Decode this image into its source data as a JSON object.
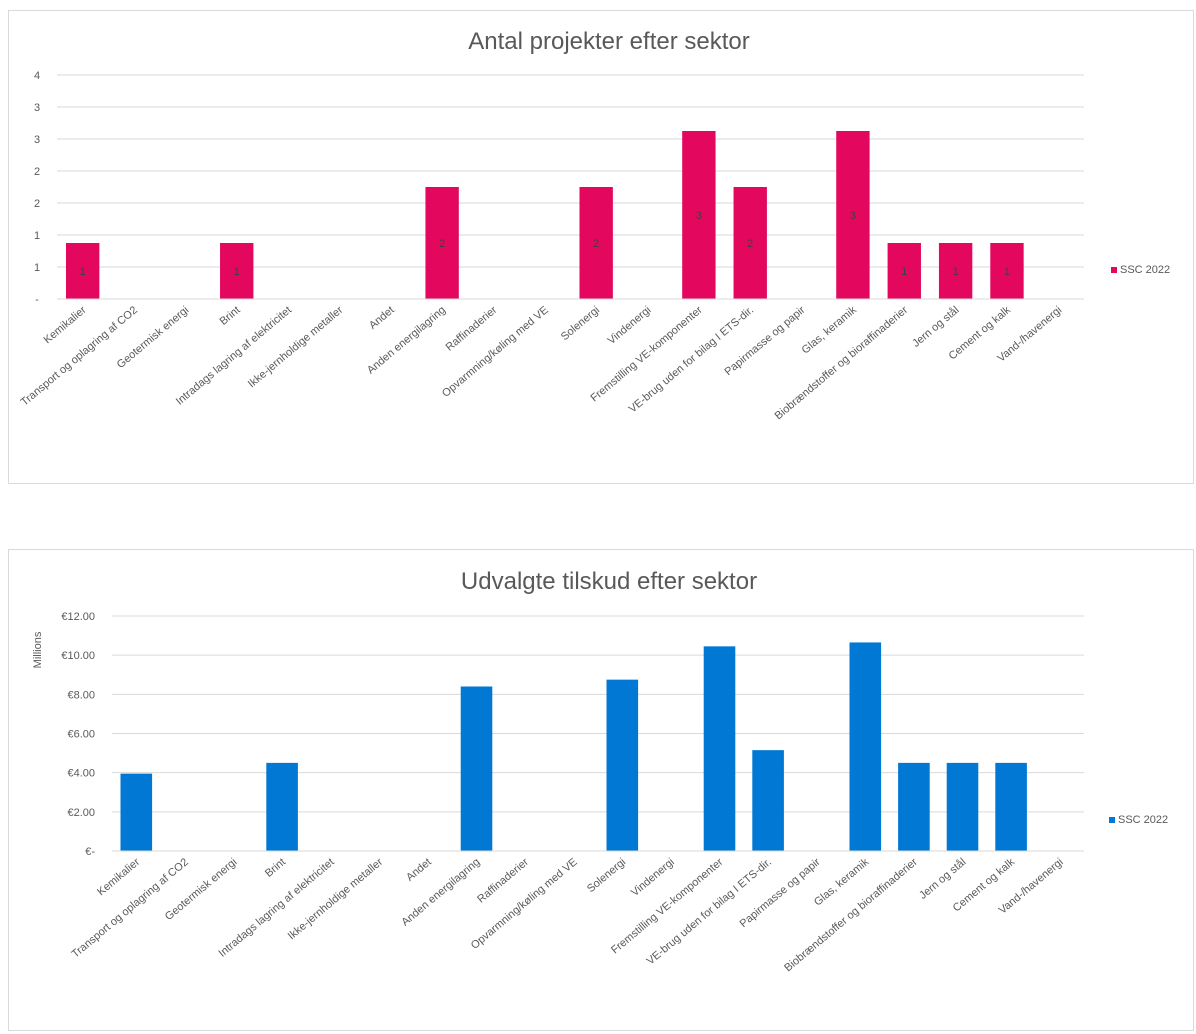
{
  "chart_data": [
    {
      "type": "bar",
      "title": "Antal projekter efter sektor",
      "xlabel": "",
      "ylabel": "",
      "ylim": [
        0,
        4
      ],
      "grid": true,
      "legend_position": "right",
      "y_tick_labels": [
        "-",
        "1",
        "1",
        "2",
        "2",
        "3",
        "3",
        "4"
      ],
      "categories": [
        "Kemikalier",
        "Transport og oplagring af CO2",
        "Geotermisk energi",
        "Brint",
        "Intradags lagring af elektricitet",
        "Ikke-jernholdige metaller",
        "Andet",
        "Anden energilagring",
        "Raffinaderier",
        "Opvarmning/køling med VE",
        "Solenergi",
        "Vindenergi",
        "Fremstilling VE-komponenter",
        "VE-brug uden for bilag I ETS-dir.",
        "Papirmasse og papir",
        "Glas, keramik",
        "Biobrændstoffer og bioraffinaderier",
        "Jern og stål",
        "Cement og kalk",
        "Vand-/havenergi"
      ],
      "series": [
        {
          "name": "SSC 2022",
          "color": "#e3085d",
          "values": [
            1,
            0,
            0,
            1,
            0,
            0,
            0,
            2,
            0,
            0,
            2,
            0,
            3,
            2,
            0,
            3,
            1,
            1,
            1,
            0
          ]
        }
      ],
      "data_labels": [
        "1",
        "",
        "",
        "1",
        "",
        "",
        "",
        "2",
        "",
        "",
        "2",
        "",
        "3",
        "2",
        "",
        "3",
        "1",
        "1",
        "1",
        ""
      ]
    },
    {
      "type": "bar",
      "title": "Udvalgte tilskud efter sektor",
      "xlabel": "",
      "ylabel": "Millions",
      "ylim": [
        0,
        12
      ],
      "grid": true,
      "legend_position": "right",
      "y_tick_labels": [
        "€-",
        "€2.00",
        "€4.00",
        "€6.00",
        "€8.00",
        "€10.00",
        "€12.00"
      ],
      "categories": [
        "Kemikalier",
        "Transport og oplagring af CO2",
        "Geotermisk energi",
        "Brint",
        "Intradags lagring af elektricitet",
        "Ikke-jernholdige metaller",
        "Andet",
        "Anden energilagring",
        "Raffinaderier",
        "Opvarmning/køling med VE",
        "Solenergi",
        "Vindenergi",
        "Fremstilling VE-komponenter",
        "VE-brug uden for bilag I ETS-dir.",
        "Papirmasse og papir",
        "Glas, keramik",
        "Biobrændstoffer og bioraffinaderier",
        "Jern og stål",
        "Cement og kalk",
        "Vand-/havenergi"
      ],
      "series": [
        {
          "name": "SSC 2022",
          "color": "#0078d4",
          "values": [
            3.95,
            0,
            0,
            4.5,
            0,
            0,
            0,
            8.4,
            0,
            0,
            8.75,
            0,
            10.45,
            5.15,
            0,
            10.65,
            4.5,
            4.5,
            4.5,
            0
          ]
        }
      ]
    }
  ]
}
